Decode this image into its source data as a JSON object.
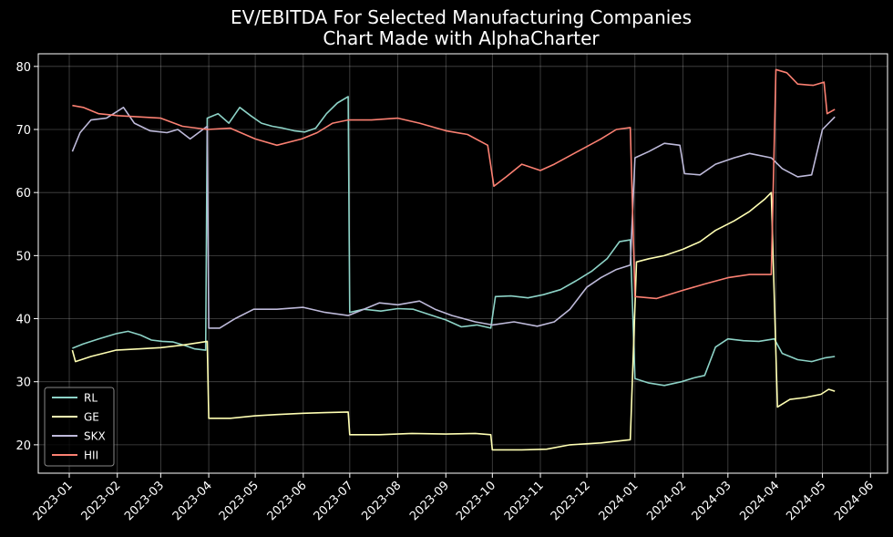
{
  "chart_data": {
    "type": "line",
    "title": "EV/EBITDA For Selected Manufacturing Companies",
    "subtitle": "Chart Made with AlphaCharter",
    "xlabel": "",
    "ylabel": "",
    "x_axis": "date",
    "xlim": [
      "2022-12-12",
      "2024-06-12"
    ],
    "ylim": [
      15.5,
      82
    ],
    "x_ticks": [
      "2023-01",
      "2023-02",
      "2023-03",
      "2023-04",
      "2023-05",
      "2023-06",
      "2023-07",
      "2023-08",
      "2023-09",
      "2023-10",
      "2023-11",
      "2023-12",
      "2024-01",
      "2024-02",
      "2024-03",
      "2024-04",
      "2024-05",
      "2024-06"
    ],
    "y_ticks": [
      20,
      30,
      40,
      50,
      60,
      70,
      80
    ],
    "grid": true,
    "legend": "lower-left",
    "background": "#000000",
    "series": [
      {
        "name": "RL",
        "color": "#8dd3c7",
        "points": [
          [
            "2023-01-03",
            35.3
          ],
          [
            "2023-01-10",
            36.0
          ],
          [
            "2023-01-20",
            36.8
          ],
          [
            "2023-01-31",
            37.6
          ],
          [
            "2023-02-08",
            38.0
          ],
          [
            "2023-02-16",
            37.4
          ],
          [
            "2023-02-23",
            36.6
          ],
          [
            "2023-03-02",
            36.4
          ],
          [
            "2023-03-09",
            36.3
          ],
          [
            "2023-03-16",
            35.8
          ],
          [
            "2023-03-23",
            35.2
          ],
          [
            "2023-03-30",
            35.0
          ],
          [
            "2023-03-31",
            71.8
          ],
          [
            "2023-04-07",
            72.5
          ],
          [
            "2023-04-14",
            71.0
          ],
          [
            "2023-04-21",
            73.5
          ],
          [
            "2023-04-28",
            72.2
          ],
          [
            "2023-05-05",
            71.0
          ],
          [
            "2023-05-12",
            70.5
          ],
          [
            "2023-05-19",
            70.2
          ],
          [
            "2023-05-26",
            69.8
          ],
          [
            "2023-06-02",
            69.6
          ],
          [
            "2023-06-09",
            70.2
          ],
          [
            "2023-06-16",
            72.5
          ],
          [
            "2023-06-23",
            74.2
          ],
          [
            "2023-06-30",
            75.2
          ],
          [
            "2023-07-01",
            41.0
          ],
          [
            "2023-07-10",
            41.5
          ],
          [
            "2023-07-21",
            41.2
          ],
          [
            "2023-08-01",
            41.6
          ],
          [
            "2023-08-11",
            41.5
          ],
          [
            "2023-08-22",
            40.6
          ],
          [
            "2023-09-01",
            39.8
          ],
          [
            "2023-09-11",
            38.7
          ],
          [
            "2023-09-21",
            39.0
          ],
          [
            "2023-09-30",
            38.5
          ],
          [
            "2023-10-03",
            43.5
          ],
          [
            "2023-10-13",
            43.6
          ],
          [
            "2023-10-24",
            43.3
          ],
          [
            "2023-11-03",
            43.8
          ],
          [
            "2023-11-14",
            44.6
          ],
          [
            "2023-11-24",
            46.0
          ],
          [
            "2023-12-04",
            47.5
          ],
          [
            "2023-12-14",
            49.5
          ],
          [
            "2023-12-22",
            52.2
          ],
          [
            "2023-12-29",
            52.5
          ],
          [
            "2024-01-01",
            30.5
          ],
          [
            "2024-01-10",
            29.8
          ],
          [
            "2024-01-20",
            29.4
          ],
          [
            "2024-01-31",
            30.0
          ],
          [
            "2024-02-08",
            30.6
          ],
          [
            "2024-02-15",
            31.0
          ],
          [
            "2024-02-22",
            35.5
          ],
          [
            "2024-03-01",
            36.8
          ],
          [
            "2024-03-11",
            36.5
          ],
          [
            "2024-03-21",
            36.4
          ],
          [
            "2024-03-31",
            36.8
          ],
          [
            "2024-04-05",
            34.5
          ],
          [
            "2024-04-15",
            33.5
          ],
          [
            "2024-04-24",
            33.2
          ],
          [
            "2024-05-03",
            33.8
          ],
          [
            "2024-05-09",
            34.0
          ]
        ]
      },
      {
        "name": "GE",
        "color": "#ffffb3",
        "points": [
          [
            "2023-01-03",
            35.0
          ],
          [
            "2023-01-05",
            33.2
          ],
          [
            "2023-01-15",
            34.0
          ],
          [
            "2023-01-31",
            35.0
          ],
          [
            "2023-02-15",
            35.2
          ],
          [
            "2023-03-01",
            35.4
          ],
          [
            "2023-03-15",
            35.8
          ],
          [
            "2023-03-31",
            36.4
          ],
          [
            "2023-04-01",
            24.2
          ],
          [
            "2023-04-15",
            24.2
          ],
          [
            "2023-05-01",
            24.6
          ],
          [
            "2023-05-15",
            24.8
          ],
          [
            "2023-06-01",
            25.0
          ],
          [
            "2023-06-15",
            25.1
          ],
          [
            "2023-06-30",
            25.2
          ],
          [
            "2023-07-01",
            21.6
          ],
          [
            "2023-07-20",
            21.6
          ],
          [
            "2023-08-10",
            21.8
          ],
          [
            "2023-09-01",
            21.7
          ],
          [
            "2023-09-20",
            21.8
          ],
          [
            "2023-09-30",
            21.6
          ],
          [
            "2023-10-01",
            19.2
          ],
          [
            "2023-10-20",
            19.2
          ],
          [
            "2023-11-05",
            19.3
          ],
          [
            "2023-11-20",
            20.0
          ],
          [
            "2023-12-10",
            20.3
          ],
          [
            "2023-12-29",
            20.8
          ],
          [
            "2024-01-02",
            49.0
          ],
          [
            "2024-01-10",
            49.5
          ],
          [
            "2024-01-20",
            50.0
          ],
          [
            "2024-02-01",
            51.0
          ],
          [
            "2024-02-12",
            52.2
          ],
          [
            "2024-02-22",
            54.0
          ],
          [
            "2024-03-05",
            55.5
          ],
          [
            "2024-03-15",
            57.0
          ],
          [
            "2024-03-25",
            59.0
          ],
          [
            "2024-03-29",
            60.0
          ],
          [
            "2024-04-02",
            26.0
          ],
          [
            "2024-04-10",
            27.2
          ],
          [
            "2024-04-20",
            27.5
          ],
          [
            "2024-04-30",
            28.0
          ],
          [
            "2024-05-05",
            28.8
          ],
          [
            "2024-05-09",
            28.5
          ]
        ]
      },
      {
        "name": "SKX",
        "color": "#bebada",
        "points": [
          [
            "2023-01-03",
            66.5
          ],
          [
            "2023-01-08",
            69.5
          ],
          [
            "2023-01-15",
            71.5
          ],
          [
            "2023-01-25",
            71.8
          ],
          [
            "2023-02-05",
            73.5
          ],
          [
            "2023-02-12",
            71.0
          ],
          [
            "2023-02-22",
            69.8
          ],
          [
            "2023-03-05",
            69.5
          ],
          [
            "2023-03-12",
            70.0
          ],
          [
            "2023-03-20",
            68.5
          ],
          [
            "2023-03-31",
            70.5
          ],
          [
            "2023-04-01",
            38.5
          ],
          [
            "2023-04-08",
            38.5
          ],
          [
            "2023-04-18",
            40.0
          ],
          [
            "2023-04-30",
            41.5
          ],
          [
            "2023-05-15",
            41.5
          ],
          [
            "2023-06-01",
            41.8
          ],
          [
            "2023-06-15",
            41.0
          ],
          [
            "2023-06-30",
            40.5
          ],
          [
            "2023-07-10",
            41.5
          ],
          [
            "2023-07-20",
            42.5
          ],
          [
            "2023-08-01",
            42.2
          ],
          [
            "2023-08-15",
            42.8
          ],
          [
            "2023-08-25",
            41.5
          ],
          [
            "2023-09-05",
            40.5
          ],
          [
            "2023-09-20",
            39.5
          ],
          [
            "2023-10-01",
            39.0
          ],
          [
            "2023-10-15",
            39.5
          ],
          [
            "2023-10-30",
            38.8
          ],
          [
            "2023-11-10",
            39.5
          ],
          [
            "2023-11-20",
            41.5
          ],
          [
            "2023-12-01",
            45.0
          ],
          [
            "2023-12-10",
            46.5
          ],
          [
            "2023-12-20",
            47.8
          ],
          [
            "2023-12-29",
            48.5
          ],
          [
            "2024-01-01",
            65.5
          ],
          [
            "2024-01-10",
            66.5
          ],
          [
            "2024-01-20",
            67.8
          ],
          [
            "2024-01-30",
            67.5
          ],
          [
            "2024-02-02",
            63.0
          ],
          [
            "2024-02-12",
            62.8
          ],
          [
            "2024-02-22",
            64.5
          ],
          [
            "2024-03-05",
            65.5
          ],
          [
            "2024-03-15",
            66.2
          ],
          [
            "2024-03-29",
            65.5
          ],
          [
            "2024-04-05",
            63.8
          ],
          [
            "2024-04-15",
            62.5
          ],
          [
            "2024-04-24",
            62.8
          ],
          [
            "2024-05-01",
            70.0
          ],
          [
            "2024-05-09",
            72.0
          ]
        ]
      },
      {
        "name": "HII",
        "color": "#fb8072",
        "points": [
          [
            "2023-01-03",
            73.8
          ],
          [
            "2023-01-10",
            73.5
          ],
          [
            "2023-01-20",
            72.5
          ],
          [
            "2023-02-01",
            72.2
          ],
          [
            "2023-02-15",
            72.0
          ],
          [
            "2023-03-01",
            71.8
          ],
          [
            "2023-03-15",
            70.5
          ],
          [
            "2023-03-31",
            70.0
          ],
          [
            "2023-04-15",
            70.2
          ],
          [
            "2023-05-01",
            68.5
          ],
          [
            "2023-05-15",
            67.5
          ],
          [
            "2023-05-31",
            68.5
          ],
          [
            "2023-06-10",
            69.5
          ],
          [
            "2023-06-20",
            71.0
          ],
          [
            "2023-06-30",
            71.5
          ],
          [
            "2023-07-15",
            71.5
          ],
          [
            "2023-08-01",
            71.8
          ],
          [
            "2023-08-15",
            71.0
          ],
          [
            "2023-09-01",
            69.8
          ],
          [
            "2023-09-15",
            69.2
          ],
          [
            "2023-09-28",
            67.5
          ],
          [
            "2023-10-02",
            61.0
          ],
          [
            "2023-10-10",
            62.5
          ],
          [
            "2023-10-20",
            64.5
          ],
          [
            "2023-11-01",
            63.5
          ],
          [
            "2023-11-10",
            64.5
          ],
          [
            "2023-11-25",
            66.5
          ],
          [
            "2023-12-10",
            68.5
          ],
          [
            "2023-12-20",
            70.0
          ],
          [
            "2023-12-29",
            70.3
          ],
          [
            "2024-01-01",
            43.5
          ],
          [
            "2024-01-15",
            43.2
          ],
          [
            "2024-02-01",
            44.5
          ],
          [
            "2024-02-15",
            45.5
          ],
          [
            "2024-03-01",
            46.5
          ],
          [
            "2024-03-15",
            47.0
          ],
          [
            "2024-03-29",
            47.0
          ],
          [
            "2024-04-01",
            79.5
          ],
          [
            "2024-04-08",
            79.0
          ],
          [
            "2024-04-15",
            77.2
          ],
          [
            "2024-04-25",
            77.0
          ],
          [
            "2024-05-02",
            77.5
          ],
          [
            "2024-05-04",
            72.5
          ],
          [
            "2024-05-09",
            73.2
          ]
        ]
      }
    ]
  }
}
